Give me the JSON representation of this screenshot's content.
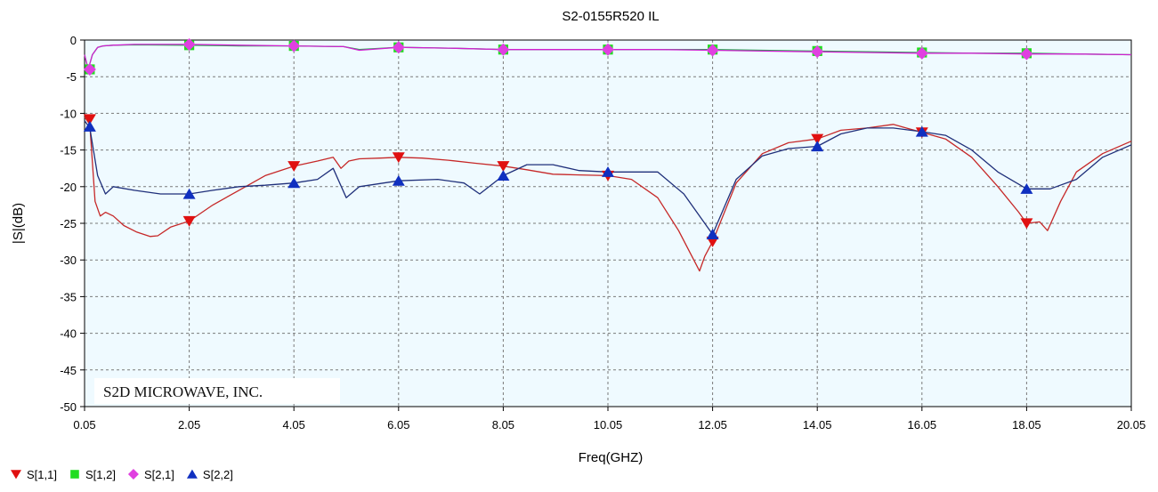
{
  "chart_data": {
    "type": "line",
    "title": "S2-0155R520 IL",
    "xlabel": "Freq(GHZ)",
    "ylabel": "|S|(dB)",
    "xlim": [
      0.05,
      20.05
    ],
    "ylim": [
      -50,
      0
    ],
    "x_ticks": [
      0.05,
      2.05,
      4.05,
      6.05,
      8.05,
      10.05,
      12.05,
      14.05,
      16.05,
      18.05,
      20.05
    ],
    "x_tick_labels": [
      "0.05",
      "2.05",
      "4.05",
      "6.05",
      "8.05",
      "10.05",
      "12.05",
      "14.05",
      "16.05",
      "18.05",
      "20.05"
    ],
    "y_ticks": [
      0,
      -5,
      -10,
      -15,
      -20,
      -25,
      -30,
      -35,
      -40,
      -45,
      -50
    ],
    "y_tick_labels": [
      "0",
      "-5",
      "-10",
      "-15",
      "-20",
      "-25",
      "-30",
      "-35",
      "-40",
      "-45",
      "-50"
    ],
    "grid": true,
    "plot_background": "#EFFAFF",
    "legend_placement": "bottom-left",
    "annotation": "S2D MICROWAVE, INC.",
    "series": [
      {
        "name": "S[1,1]",
        "color": "#C62828",
        "marker": "triangle-down",
        "marker_color": "#E01010",
        "x": [
          0.05,
          0.15,
          0.25,
          0.35,
          0.45,
          0.6,
          0.8,
          1.05,
          1.3,
          1.45,
          1.7,
          2.05,
          2.5,
          3.0,
          3.5,
          4.05,
          4.5,
          4.8,
          4.95,
          5.1,
          5.3,
          5.7,
          6.05,
          6.5,
          7.0,
          7.5,
          8.05,
          8.5,
          9.0,
          9.5,
          10.05,
          10.5,
          11.0,
          11.4,
          11.8,
          11.9,
          12.05,
          12.5,
          13.0,
          13.5,
          14.05,
          14.5,
          15.0,
          15.5,
          16.05,
          16.5,
          17.0,
          17.5,
          17.9,
          18.05,
          18.3,
          18.45,
          18.7,
          19.0,
          19.5,
          20.05
        ],
        "y": [
          -10.5,
          -11.5,
          -22.0,
          -24.0,
          -23.5,
          -24.0,
          -25.3,
          -26.2,
          -26.8,
          -26.7,
          -25.5,
          -24.7,
          -22.5,
          -20.5,
          -18.5,
          -17.2,
          -16.5,
          -16.0,
          -17.5,
          -16.5,
          -16.2,
          -16.1,
          -16.0,
          -16.1,
          -16.4,
          -16.8,
          -17.2,
          -17.7,
          -18.3,
          -18.4,
          -18.5,
          -19.0,
          -21.5,
          -26.0,
          -31.5,
          -29.5,
          -27.5,
          -19.5,
          -15.5,
          -14.0,
          -13.5,
          -12.3,
          -12.0,
          -11.5,
          -12.6,
          -13.5,
          -16.0,
          -20.0,
          -23.5,
          -25.0,
          -24.8,
          -26.0,
          -22.0,
          -18.0,
          -15.5,
          -13.8
        ],
        "markers_x": [
          0.15,
          2.05,
          4.05,
          6.05,
          8.05,
          10.05,
          12.05,
          14.05,
          16.05,
          18.05
        ],
        "markers_y": [
          -10.8,
          -24.7,
          -17.2,
          -16.0,
          -17.2,
          -18.5,
          -27.5,
          -13.5,
          -12.6,
          -25.0
        ]
      },
      {
        "name": "S[1,2]",
        "color": "#22B14C",
        "marker": "square",
        "marker_color": "#22DD22",
        "x": [
          0.05,
          0.12,
          0.2,
          0.3,
          0.4,
          0.6,
          1.0,
          2.05,
          3.0,
          4.05,
          5.0,
          5.3,
          6.05,
          7.0,
          8.05,
          9.0,
          10.05,
          11.0,
          12.05,
          13.0,
          14.05,
          15.0,
          16.05,
          17.0,
          18.05,
          19.0,
          20.05
        ],
        "y": [
          -2.0,
          -4.0,
          -2.0,
          -1.0,
          -0.8,
          -0.7,
          -0.65,
          -0.7,
          -0.8,
          -0.8,
          -0.9,
          -1.3,
          -1.0,
          -1.1,
          -1.3,
          -1.3,
          -1.3,
          -1.3,
          -1.3,
          -1.4,
          -1.5,
          -1.6,
          -1.7,
          -1.8,
          -1.8,
          -1.9,
          -2.0
        ],
        "markers_x": [
          0.15,
          2.05,
          4.05,
          6.05,
          8.05,
          10.05,
          12.05,
          14.05,
          16.05,
          18.05
        ],
        "markers_y": [
          -4.0,
          -0.7,
          -0.8,
          -1.0,
          -1.3,
          -1.3,
          -1.3,
          -1.5,
          -1.7,
          -1.8
        ]
      },
      {
        "name": "S[2,1]",
        "color": "#D020D0",
        "marker": "diamond",
        "marker_color": "#E040E0",
        "x": [
          0.05,
          0.12,
          0.2,
          0.3,
          0.4,
          0.6,
          1.0,
          2.05,
          3.0,
          4.05,
          5.0,
          5.3,
          6.05,
          7.0,
          8.05,
          9.0,
          10.05,
          11.0,
          12.05,
          13.0,
          14.05,
          15.0,
          16.05,
          17.0,
          18.05,
          19.0,
          20.05
        ],
        "y": [
          -2.0,
          -4.0,
          -2.0,
          -1.0,
          -0.8,
          -0.7,
          -0.6,
          -0.6,
          -0.7,
          -0.8,
          -0.9,
          -1.4,
          -1.0,
          -1.1,
          -1.3,
          -1.3,
          -1.3,
          -1.3,
          -1.4,
          -1.5,
          -1.6,
          -1.7,
          -1.8,
          -1.8,
          -1.9,
          -1.9,
          -2.0
        ],
        "markers_x": [
          0.15,
          2.05,
          4.05,
          6.05,
          8.05,
          10.05,
          12.05,
          14.05,
          16.05,
          18.05
        ],
        "markers_y": [
          -4.0,
          -0.6,
          -0.8,
          -1.0,
          -1.3,
          -1.3,
          -1.4,
          -1.6,
          -1.8,
          -1.9
        ]
      },
      {
        "name": "S[2,2]",
        "color": "#1F2F7A",
        "marker": "triangle-up",
        "marker_color": "#1030C0",
        "x": [
          0.05,
          0.15,
          0.3,
          0.45,
          0.6,
          1.0,
          1.5,
          2.05,
          2.5,
          3.0,
          3.5,
          4.05,
          4.5,
          4.8,
          5.05,
          5.3,
          6.05,
          6.8,
          7.3,
          7.6,
          8.05,
          8.5,
          9.0,
          9.5,
          10.05,
          10.5,
          11.0,
          11.5,
          12.05,
          12.5,
          13.0,
          13.5,
          14.05,
          14.5,
          15.0,
          15.5,
          16.05,
          16.5,
          17.0,
          17.5,
          18.05,
          18.5,
          19.0,
          19.5,
          20.05
        ],
        "y": [
          -11.0,
          -12.0,
          -18.5,
          -21.0,
          -20.0,
          -20.5,
          -21.0,
          -21.0,
          -20.5,
          -20.0,
          -19.8,
          -19.5,
          -19.0,
          -17.5,
          -21.5,
          -20.0,
          -19.2,
          -19.0,
          -19.5,
          -21.0,
          -18.5,
          -17.0,
          -17.0,
          -17.8,
          -18.0,
          -18.0,
          -18.0,
          -21.0,
          -26.5,
          -19.0,
          -15.8,
          -14.8,
          -14.5,
          -12.8,
          -12.0,
          -12.0,
          -12.5,
          -13.0,
          -15.0,
          -18.0,
          -20.3,
          -20.3,
          -19.0,
          -16.0,
          -14.3
        ],
        "markers_x": [
          0.15,
          2.05,
          4.05,
          6.05,
          8.05,
          10.05,
          12.05,
          14.05,
          16.05,
          18.05
        ],
        "markers_y": [
          -11.8,
          -21.0,
          -19.5,
          -19.2,
          -18.5,
          -18.0,
          -26.5,
          -14.5,
          -12.5,
          -20.3
        ]
      }
    ]
  }
}
